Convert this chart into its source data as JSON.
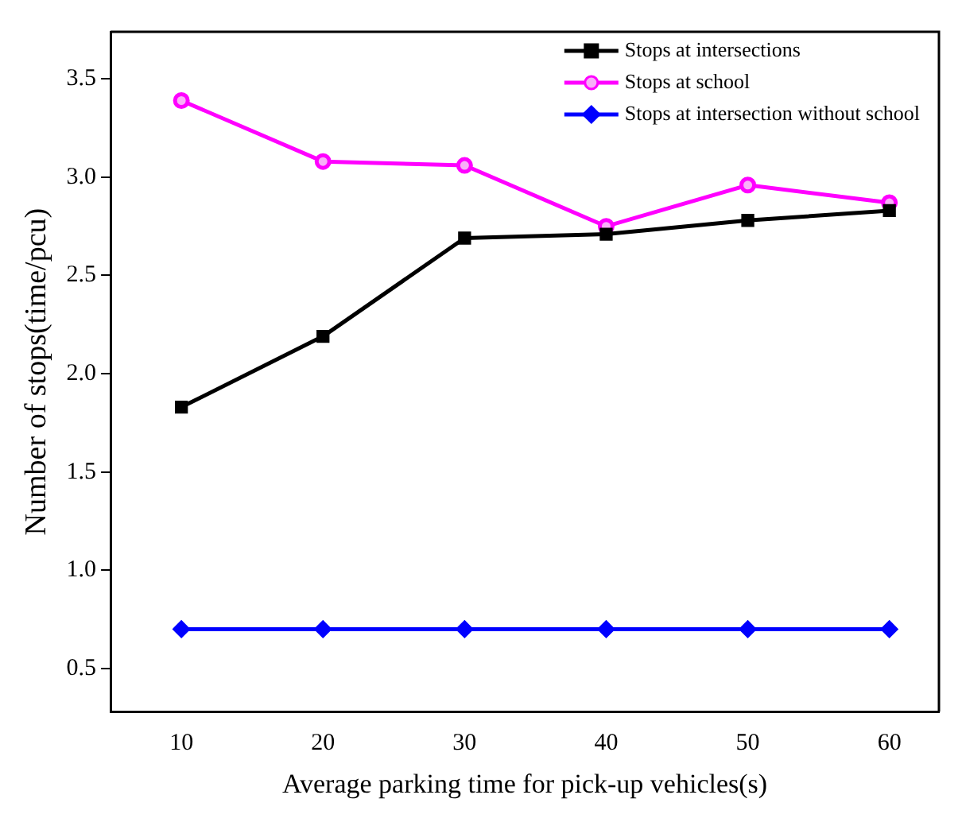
{
  "chart_data": {
    "type": "line",
    "xlabel": "Average parking time for pick-up vehicles(s)",
    "ylabel": "Number of stops(time/pcu)",
    "x": [
      10,
      20,
      30,
      40,
      50,
      60
    ],
    "series": [
      {
        "name": "Stops at intersections",
        "color": "#000000",
        "marker": "square",
        "values": [
          1.83,
          2.19,
          2.69,
          2.71,
          2.78,
          2.83
        ]
      },
      {
        "name": "Stops at school",
        "color": "#ff00ff",
        "marker": "circle",
        "values": [
          3.39,
          3.08,
          3.06,
          2.75,
          2.96,
          2.87
        ]
      },
      {
        "name": "Stops at intersection without school",
        "color": "#0000ff",
        "marker": "diamond",
        "values": [
          0.7,
          0.7,
          0.7,
          0.7,
          0.7,
          0.7
        ]
      }
    ],
    "xlim": [
      5,
      63.5
    ],
    "xticks": [
      10,
      20,
      30,
      40,
      50,
      60
    ],
    "ylim": [
      0.28,
      3.74
    ],
    "yticks": [
      0.5,
      {
        "value": 1,
        "label": "1.0"
      },
      1.5,
      {
        "value": 2,
        "label": "2.0"
      },
      2.5,
      {
        "value": 3,
        "label": "3.0"
      },
      3.5
    ],
    "grid": false,
    "legend": "top right",
    "line_style": "solid"
  }
}
